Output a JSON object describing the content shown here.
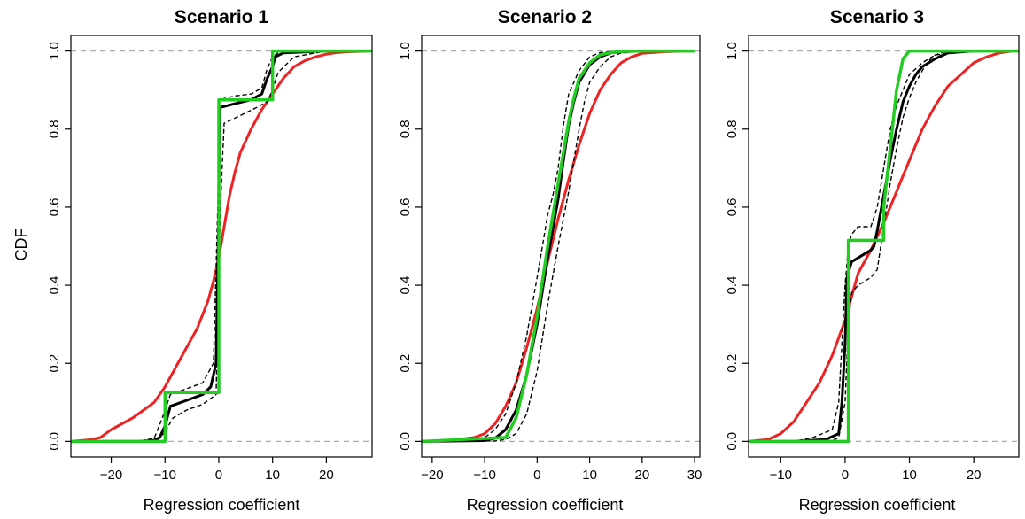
{
  "chart_data": [
    {
      "type": "line",
      "title": "Scenario 1",
      "xlabel": "Regression coefficient",
      "ylabel": "CDF",
      "xlim": [
        -27.5,
        28.5
      ],
      "ylim": [
        -0.04,
        1.04
      ],
      "xticks": [
        -20,
        -10,
        0,
        10,
        20
      ],
      "yticks": [
        0.0,
        0.2,
        0.4,
        0.6,
        0.8,
        1.0
      ],
      "xtick_labels": [
        "−20",
        "−10",
        "0",
        "10",
        "20"
      ],
      "ytick_labels": [
        "0.0",
        "0.2",
        "0.4",
        "0.6",
        "0.8",
        "1.0"
      ],
      "hlines": [
        0,
        1
      ],
      "series": [
        {
          "color": "#ee2222",
          "style": "solid",
          "x": [
            -27.5,
            -24,
            -22,
            -20,
            -18,
            -16,
            -14,
            -12,
            -10,
            -8,
            -6,
            -4,
            -2,
            -1,
            0,
            1,
            2,
            3,
            4,
            6,
            8,
            10,
            12,
            14,
            16,
            18,
            20,
            22,
            24,
            26,
            28
          ],
          "y": [
            0,
            0.004,
            0.01,
            0.03,
            0.045,
            0.06,
            0.08,
            0.1,
            0.14,
            0.19,
            0.24,
            0.29,
            0.36,
            0.41,
            0.47,
            0.55,
            0.63,
            0.69,
            0.74,
            0.8,
            0.85,
            0.89,
            0.93,
            0.96,
            0.975,
            0.985,
            0.992,
            0.996,
            0.998,
            0.999,
            1
          ]
        },
        {
          "color": "#000000",
          "style": "solid",
          "x": [
            -25,
            -15,
            -12,
            -11,
            -10,
            -9,
            -6,
            -3,
            -1.5,
            -0.5,
            0,
            0.1,
            3,
            6,
            8,
            9,
            10,
            10.5,
            12,
            20,
            27
          ],
          "y": [
            0,
            0,
            0.003,
            0.01,
            0.04,
            0.09,
            0.105,
            0.12,
            0.14,
            0.2,
            0.6,
            0.855,
            0.865,
            0.875,
            0.89,
            0.93,
            0.96,
            0.985,
            0.995,
            1,
            1
          ]
        },
        {
          "color": "#000000",
          "style": "dashed",
          "x": [
            -25,
            -15,
            -12,
            -10.5,
            -9,
            -6,
            -3,
            -1,
            -0.2,
            0.1,
            3,
            6,
            8,
            9,
            10,
            11,
            13,
            20,
            27
          ],
          "y": [
            0,
            0,
            0.008,
            0.06,
            0.12,
            0.135,
            0.15,
            0.2,
            0.6,
            0.875,
            0.885,
            0.89,
            0.905,
            0.955,
            0.985,
            0.995,
            1,
            1,
            1
          ]
        },
        {
          "color": "#000000",
          "style": "dashed",
          "x": [
            -25,
            -15,
            -11.5,
            -10,
            -8.5,
            -6,
            -3,
            -0.5,
            0.3,
            1,
            4,
            7,
            9,
            10,
            11,
            14,
            20,
            27
          ],
          "y": [
            0,
            0,
            0.002,
            0.025,
            0.06,
            0.08,
            0.095,
            0.12,
            0.6,
            0.815,
            0.835,
            0.855,
            0.87,
            0.9,
            0.945,
            0.985,
            1,
            1
          ]
        },
        {
          "color": "#22cc22",
          "style": "solid",
          "x": [
            -27.5,
            -10,
            -10,
            0,
            0,
            10,
            10,
            28.5
          ],
          "y": [
            0,
            0,
            0.125,
            0.125,
            0.875,
            0.875,
            1,
            1
          ]
        }
      ]
    },
    {
      "type": "line",
      "title": "Scenario 2",
      "xlabel": "Regression coefficient",
      "ylabel": "",
      "xlim": [
        -22,
        31
      ],
      "ylim": [
        -0.04,
        1.04
      ],
      "xticks": [
        -20,
        -10,
        0,
        10,
        20,
        30
      ],
      "yticks": [
        0.0,
        0.2,
        0.4,
        0.6,
        0.8,
        1.0
      ],
      "xtick_labels": [
        "−20",
        "−10",
        "0",
        "10",
        "20",
        "30"
      ],
      "ytick_labels": [
        "0.0",
        "0.2",
        "0.4",
        "0.6",
        "0.8",
        "1.0"
      ],
      "hlines": [
        0,
        1
      ],
      "series": [
        {
          "color": "#ee2222",
          "style": "solid",
          "x": [
            -22,
            -16,
            -12,
            -10,
            -8,
            -6,
            -4,
            -2,
            0,
            2,
            4,
            6,
            8,
            10,
            12,
            14,
            16,
            18,
            20,
            24,
            28
          ],
          "y": [
            0,
            0.003,
            0.01,
            0.02,
            0.045,
            0.09,
            0.15,
            0.24,
            0.34,
            0.46,
            0.57,
            0.67,
            0.76,
            0.84,
            0.9,
            0.94,
            0.97,
            0.985,
            0.994,
            0.998,
            1
          ]
        },
        {
          "color": "#000000",
          "style": "solid",
          "x": [
            -22,
            -10,
            -8,
            -6,
            -4,
            -2,
            0,
            2,
            4,
            5,
            6,
            7,
            8,
            10,
            12,
            14,
            16,
            20,
            30
          ],
          "y": [
            0,
            0.002,
            0.008,
            0.03,
            0.08,
            0.17,
            0.3,
            0.47,
            0.62,
            0.72,
            0.81,
            0.87,
            0.92,
            0.965,
            0.985,
            0.995,
            0.998,
            1,
            1
          ]
        },
        {
          "color": "#000000",
          "style": "dashed",
          "x": [
            -22,
            -12,
            -10,
            -8,
            -6,
            -4,
            -2,
            0,
            2,
            3,
            4,
            5,
            6,
            8,
            10,
            12,
            16,
            30
          ],
          "y": [
            0,
            0.003,
            0.01,
            0.03,
            0.07,
            0.15,
            0.27,
            0.42,
            0.58,
            0.63,
            0.7,
            0.81,
            0.89,
            0.95,
            0.985,
            0.996,
            1,
            1
          ]
        },
        {
          "color": "#000000",
          "style": "dashed",
          "x": [
            -22,
            -8,
            -6,
            -4,
            -2,
            0,
            2,
            4,
            6,
            7,
            8,
            9,
            10,
            12,
            14,
            16,
            20,
            30
          ],
          "y": [
            0,
            0.001,
            0.005,
            0.02,
            0.07,
            0.18,
            0.35,
            0.5,
            0.64,
            0.72,
            0.8,
            0.87,
            0.92,
            0.96,
            0.985,
            0.995,
            1,
            1
          ]
        },
        {
          "color": "#22cc22",
          "style": "solid",
          "x": [
            -22,
            -6,
            -4,
            -2,
            0,
            2,
            3,
            4,
            5,
            6,
            7,
            8,
            10,
            12,
            14,
            16,
            20,
            30
          ],
          "y": [
            0,
            0.01,
            0.06,
            0.17,
            0.32,
            0.5,
            0.58,
            0.66,
            0.74,
            0.82,
            0.88,
            0.93,
            0.97,
            0.99,
            0.996,
            0.999,
            1,
            1
          ]
        }
      ]
    },
    {
      "type": "line",
      "title": "Scenario 3",
      "xlabel": "Regression coefficient",
      "ylabel": "",
      "xlim": [
        -15,
        27
      ],
      "ylim": [
        -0.04,
        1.04
      ],
      "xticks": [
        -10,
        0,
        10,
        20
      ],
      "yticks": [
        0.0,
        0.2,
        0.4,
        0.6,
        0.8,
        1.0
      ],
      "xtick_labels": [
        "−10",
        "0",
        "10",
        "20"
      ],
      "ytick_labels": [
        "0.0",
        "0.2",
        "0.4",
        "0.6",
        "0.8",
        "1.0"
      ],
      "hlines": [
        0,
        1
      ],
      "series": [
        {
          "color": "#ee2222",
          "style": "solid",
          "x": [
            -15,
            -12,
            -10,
            -8,
            -6,
            -4,
            -2,
            0,
            1,
            2,
            3,
            4,
            6,
            8,
            10,
            12,
            14,
            16,
            18,
            20,
            22,
            24,
            26
          ],
          "y": [
            0,
            0.005,
            0.02,
            0.05,
            0.1,
            0.15,
            0.22,
            0.31,
            0.37,
            0.43,
            0.46,
            0.49,
            0.56,
            0.64,
            0.72,
            0.8,
            0.86,
            0.91,
            0.94,
            0.97,
            0.985,
            0.995,
            1
          ]
        },
        {
          "color": "#000000",
          "style": "solid",
          "x": [
            -15,
            -8,
            -5,
            -3,
            -1,
            -0.5,
            0,
            0.3,
            1,
            2,
            3,
            4,
            4.5,
            5,
            6,
            7,
            8,
            9,
            10,
            11,
            12,
            14,
            16,
            20,
            26
          ],
          "y": [
            0,
            0,
            0.003,
            0.005,
            0.02,
            0.1,
            0.25,
            0.42,
            0.46,
            0.47,
            0.48,
            0.49,
            0.5,
            0.54,
            0.63,
            0.72,
            0.8,
            0.87,
            0.91,
            0.94,
            0.96,
            0.98,
            0.995,
            1,
            1
          ]
        },
        {
          "color": "#000000",
          "style": "dashed",
          "x": [
            -15,
            -8,
            -5,
            -2,
            -1,
            -0.5,
            0,
            0.5,
            1,
            2,
            4,
            5,
            6,
            7,
            8,
            9,
            10,
            12,
            14,
            20,
            26
          ],
          "y": [
            0,
            0,
            0.01,
            0.03,
            0.1,
            0.25,
            0.4,
            0.5,
            0.53,
            0.55,
            0.55,
            0.6,
            0.7,
            0.8,
            0.86,
            0.9,
            0.94,
            0.97,
            0.99,
            1,
            1
          ]
        },
        {
          "color": "#000000",
          "style": "dashed",
          "x": [
            -15,
            -5,
            -2,
            -1,
            0,
            0.5,
            1,
            2,
            4,
            5,
            6,
            7,
            8,
            9,
            10,
            11,
            12,
            13,
            14,
            16,
            20,
            26
          ],
          "y": [
            0,
            0,
            0.002,
            0.01,
            0.1,
            0.3,
            0.38,
            0.4,
            0.42,
            0.44,
            0.55,
            0.66,
            0.75,
            0.83,
            0.88,
            0.92,
            0.95,
            0.975,
            0.99,
            1,
            1,
            1
          ]
        },
        {
          "color": "#22cc22",
          "style": "solid",
          "x": [
            -15,
            -2,
            -2,
            0,
            0,
            0.5,
            0.5,
            6,
            6,
            7,
            8,
            9,
            10,
            12,
            27
          ],
          "y": [
            0,
            0,
            0,
            0,
            0,
            0,
            0.515,
            0.515,
            0.6,
            0.75,
            0.9,
            0.98,
            1,
            1,
            1
          ]
        }
      ]
    }
  ]
}
